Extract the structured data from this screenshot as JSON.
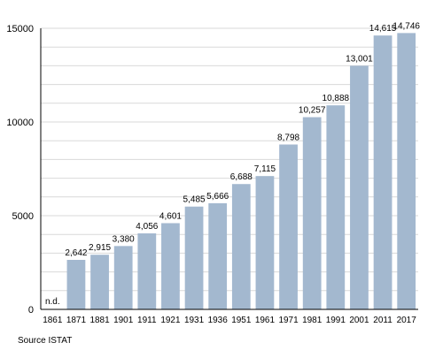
{
  "chart_data": {
    "type": "bar",
    "categories": [
      "1861",
      "1871",
      "1881",
      "1901",
      "1911",
      "1921",
      "1931",
      "1936",
      "1951",
      "1961",
      "1971",
      "1981",
      "1991",
      "2001",
      "2011",
      "2017"
    ],
    "values": [
      null,
      2642,
      2915,
      3380,
      4056,
      4601,
      5485,
      5666,
      6688,
      7115,
      8798,
      10257,
      10888,
      13001,
      14615,
      14746
    ],
    "value_labels": [
      "n.d.",
      "2,642",
      "2,915",
      "3,380",
      "4,056",
      "4,601",
      "5,485",
      "5,666",
      "6,688",
      "7,115",
      "8,798",
      "10,257",
      "10,888",
      "13,001",
      "14,615",
      "14,746"
    ],
    "yticks": [
      0,
      5000,
      10000,
      15000
    ],
    "ylim": [
      0,
      15000
    ],
    "grid": true,
    "bar_color": "#a3b8cf",
    "grid_color": "#d9d9d9"
  },
  "source_note": "Source ISTAT"
}
